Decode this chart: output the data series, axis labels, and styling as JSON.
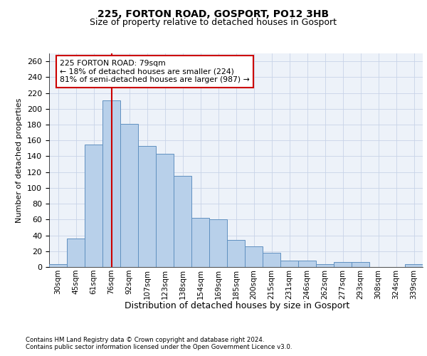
{
  "title1": "225, FORTON ROAD, GOSPORT, PO12 3HB",
  "title2": "Size of property relative to detached houses in Gosport",
  "xlabel": "Distribution of detached houses by size in Gosport",
  "ylabel": "Number of detached properties",
  "footnote1": "Contains HM Land Registry data © Crown copyright and database right 2024.",
  "footnote2": "Contains public sector information licensed under the Open Government Licence v3.0.",
  "categories": [
    "30sqm",
    "45sqm",
    "61sqm",
    "76sqm",
    "92sqm",
    "107sqm",
    "123sqm",
    "138sqm",
    "154sqm",
    "169sqm",
    "185sqm",
    "200sqm",
    "215sqm",
    "231sqm",
    "246sqm",
    "262sqm",
    "277sqm",
    "293sqm",
    "308sqm",
    "324sqm",
    "339sqm"
  ],
  "bar_heights": [
    4,
    36,
    155,
    211,
    181,
    153,
    143,
    115,
    62,
    60,
    34,
    26,
    18,
    8,
    8,
    4,
    6,
    6,
    0,
    0,
    4
  ],
  "bar_color": "#b8d0ea",
  "bar_edge_color": "#6090c0",
  "vline_index": 3,
  "annotation_text1": "225 FORTON ROAD: 79sqm",
  "annotation_text2": "← 18% of detached houses are smaller (224)",
  "annotation_text3": "81% of semi-detached houses are larger (987) →",
  "vline_color": "#cc0000",
  "annotation_box_facecolor": "#ffffff",
  "annotation_box_edgecolor": "#cc0000",
  "ylim": [
    0,
    270
  ],
  "yticks": [
    0,
    20,
    40,
    60,
    80,
    100,
    120,
    140,
    160,
    180,
    200,
    220,
    240,
    260
  ],
  "grid_color": "#c8d4e8",
  "bg_color": "#edf2f9"
}
